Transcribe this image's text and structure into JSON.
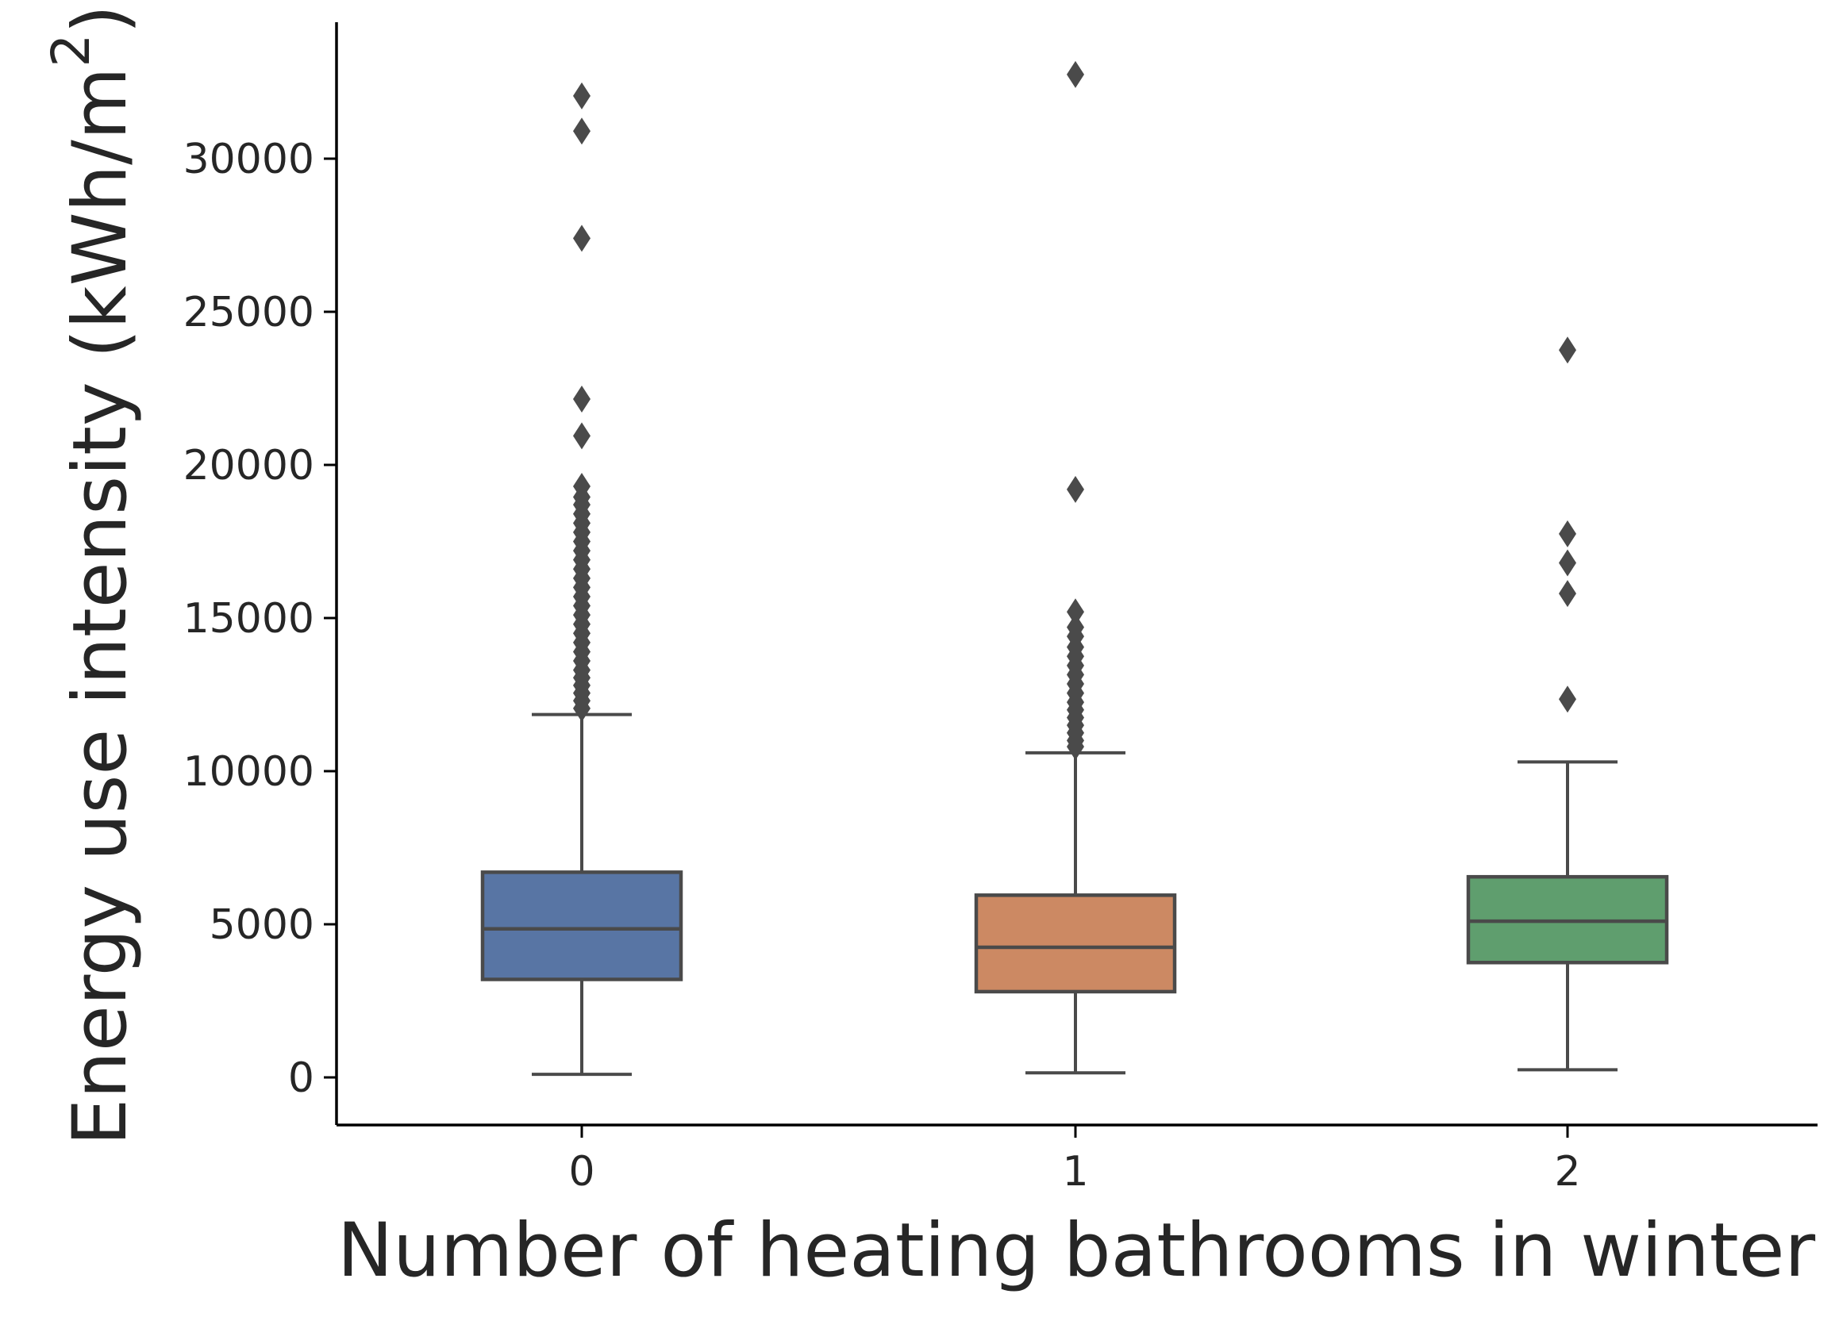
{
  "chart_data": {
    "type": "box",
    "xlabel": "Number of heating bathrooms in winter",
    "ylabel": {
      "text": "Energy use intensity (kWh/m",
      "superscript": "2",
      "closing": ")"
    },
    "categories": [
      "0",
      "1",
      "2"
    ],
    "ylim": [
      -1500,
      34200
    ],
    "yticks": [
      0,
      5000,
      10000,
      15000,
      20000,
      25000,
      30000
    ],
    "ytick_labels": [
      "0",
      "5000",
      "10000",
      "15000",
      "20000",
      "25000",
      "30000"
    ],
    "grid": false,
    "boxes": [
      {
        "category": "0",
        "color": "#5875a4",
        "whisker_low": 100,
        "q1": 3200,
        "median": 4850,
        "q3": 6700,
        "whisker_high": 11850,
        "outliers": [
          12050,
          12300,
          12550,
          12800,
          13050,
          13300,
          13600,
          13900,
          14200,
          14500,
          14800,
          15100,
          15400,
          15700,
          16000,
          16300,
          16600,
          16900,
          17200,
          17500,
          17800,
          18100,
          18400,
          18700,
          18950,
          19300,
          20950,
          22150,
          27400,
          30900,
          32050
        ]
      },
      {
        "category": "1",
        "color": "#cc8963",
        "whisker_low": 150,
        "q1": 2800,
        "median": 4250,
        "q3": 5950,
        "whisker_high": 10600,
        "outliers": [
          10800,
          11000,
          11250,
          11500,
          11750,
          12000,
          12250,
          12550,
          12850,
          13150,
          13450,
          13750,
          14050,
          14400,
          14700,
          15200,
          19200,
          32750
        ]
      },
      {
        "category": "2",
        "color": "#5f9e6e",
        "whisker_low": 250,
        "q1": 3750,
        "median": 5100,
        "q3": 6550,
        "whisker_high": 10300,
        "outliers": [
          12350,
          15800,
          16800,
          17750,
          23750
        ]
      }
    ]
  }
}
